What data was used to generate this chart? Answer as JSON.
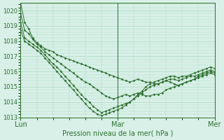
{
  "title": "",
  "xlabel": "Pression niveau de la mer( hPa )",
  "ylabel": "",
  "background_color": "#d8f0e8",
  "grid_color": "#a8d8c0",
  "line_color": "#2d6e2d",
  "ylim": [
    1013,
    1020.5
  ],
  "xlim": [
    0,
    48
  ],
  "yticks": [
    1013,
    1014,
    1015,
    1016,
    1017,
    1018,
    1019,
    1020
  ],
  "xtick_positions": [
    0,
    24,
    48
  ],
  "xtick_labels": [
    "Lun",
    "Mar",
    "Mer"
  ],
  "series": [
    [
      1020.5,
      1019.2,
      1018.8,
      1018.2,
      1017.9,
      1017.7,
      1017.5,
      1017.4,
      1017.3,
      1017.1,
      1017.0,
      1016.9,
      1016.8,
      1016.7,
      1016.6,
      1016.5,
      1016.4,
      1016.3,
      1016.2,
      1016.1,
      1016.0,
      1015.9,
      1015.8,
      1015.7,
      1015.6,
      1015.5,
      1015.4,
      1015.3,
      1015.4,
      1015.5,
      1015.4,
      1015.3,
      1015.3,
      1015.2,
      1015.2,
      1015.3,
      1015.4,
      1015.3,
      1015.2,
      1015.1,
      1015.2,
      1015.3,
      1015.4,
      1015.5,
      1015.7,
      1015.8,
      1015.9,
      1016.0,
      1015.9
    ],
    [
      1019.8,
      1018.7,
      1018.5,
      1018.1,
      1017.8,
      1017.6,
      1017.3,
      1017.1,
      1016.9,
      1016.7,
      1016.5,
      1016.3,
      1016.1,
      1015.9,
      1015.7,
      1015.5,
      1015.3,
      1015.2,
      1015.0,
      1014.8,
      1014.6,
      1014.4,
      1014.3,
      1014.2,
      1014.3,
      1014.4,
      1014.5,
      1014.4,
      1014.5,
      1014.6,
      1014.5,
      1014.4,
      1014.4,
      1014.5,
      1014.5,
      1014.6,
      1014.8,
      1014.9,
      1015.0,
      1015.1,
      1015.2,
      1015.3,
      1015.4,
      1015.5,
      1015.6,
      1015.7,
      1015.8,
      1015.9,
      1015.8
    ],
    [
      1019.2,
      1018.2,
      1018.0,
      1017.8,
      1017.6,
      1017.4,
      1017.1,
      1016.8,
      1016.5,
      1016.3,
      1016.0,
      1015.7,
      1015.4,
      1015.1,
      1014.8,
      1014.5,
      1014.2,
      1014.0,
      1013.7,
      1013.5,
      1013.3,
      1013.4,
      1013.5,
      1013.6,
      1013.7,
      1013.8,
      1013.9,
      1014.0,
      1014.2,
      1014.4,
      1014.6,
      1014.8,
      1015.0,
      1015.1,
      1015.2,
      1015.3,
      1015.4,
      1015.5,
      1015.5,
      1015.4,
      1015.5,
      1015.6,
      1015.7,
      1015.7,
      1015.8,
      1015.9,
      1016.0,
      1016.1,
      1016.0
    ],
    [
      1018.7,
      1018.0,
      1017.8,
      1017.6,
      1017.4,
      1017.2,
      1016.9,
      1016.6,
      1016.3,
      1016.0,
      1015.7,
      1015.4,
      1015.1,
      1014.8,
      1014.5,
      1014.2,
      1013.9,
      1013.6,
      1013.4,
      1013.2,
      1013.1,
      1013.2,
      1013.3,
      1013.4,
      1013.5,
      1013.6,
      1013.8,
      1014.0,
      1014.2,
      1014.5,
      1014.7,
      1015.0,
      1015.2,
      1015.3,
      1015.4,
      1015.5,
      1015.6,
      1015.7,
      1015.7,
      1015.6,
      1015.7,
      1015.7,
      1015.8,
      1015.9,
      1016.0,
      1016.1,
      1016.2,
      1016.3,
      1016.2
    ]
  ]
}
